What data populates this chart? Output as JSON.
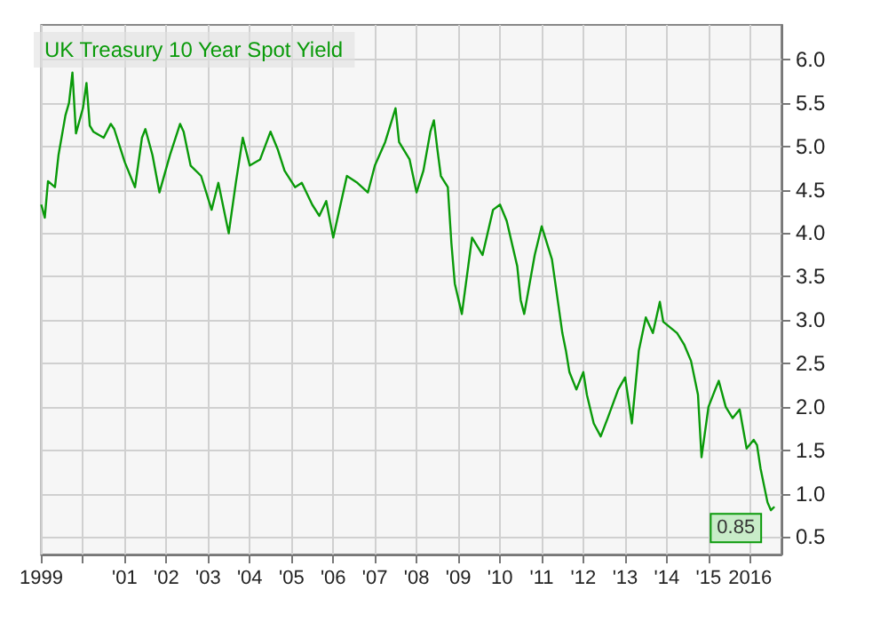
{
  "chart_data": {
    "type": "line",
    "title": "UK Treasury 10 Year Spot Yield",
    "x": [
      "1999-01",
      "1999-02",
      "1999-03",
      "1999-05",
      "1999-06",
      "1999-08",
      "1999-09",
      "1999-10",
      "1999-11",
      "2000-01",
      "2000-02",
      "2000-03",
      "2000-04",
      "2000-07",
      "2000-09",
      "2000-10",
      "2001-01",
      "2001-02",
      "2001-04",
      "2001-06",
      "2001-07",
      "2001-09",
      "2001-11",
      "2002-02",
      "2002-05",
      "2002-06",
      "2002-08",
      "2002-11",
      "2003-02",
      "2003-04",
      "2003-07",
      "2003-09",
      "2003-11",
      "2004-01",
      "2004-04",
      "2004-07",
      "2004-09",
      "2004-11",
      "2005-02",
      "2005-04",
      "2005-07",
      "2005-09",
      "2005-11",
      "2006-01",
      "2006-05",
      "2006-08",
      "2006-11",
      "2007-01",
      "2007-04",
      "2007-07",
      "2007-08",
      "2007-11",
      "2008-01",
      "2008-03",
      "2008-05",
      "2008-06",
      "2008-07",
      "2008-08",
      "2008-10",
      "2008-11",
      "2008-12",
      "2009-02",
      "2009-05",
      "2009-08",
      "2009-11",
      "2010-01",
      "2010-03",
      "2010-06",
      "2010-07",
      "2010-08",
      "2010-11",
      "2011-01",
      "2011-04",
      "2011-05",
      "2011-07",
      "2011-08",
      "2011-09",
      "2011-11",
      "2012-01",
      "2012-02",
      "2012-04",
      "2012-06",
      "2012-08",
      "2012-11",
      "2013-01",
      "2013-03",
      "2013-05",
      "2013-07",
      "2013-09",
      "2013-11",
      "2013-12",
      "2014-04",
      "2014-06",
      "2014-08",
      "2014-10",
      "2014-11",
      "2015-01",
      "2015-03",
      "2015-04",
      "2015-06",
      "2015-08",
      "2015-10",
      "2015-12",
      "2016-02",
      "2016-03",
      "2016-04",
      "2016-06",
      "2016-07",
      "2016-08"
    ],
    "series": [
      {
        "color": "#0a9a0a",
        "values": [
          4.33,
          4.18,
          4.6,
          4.53,
          4.9,
          5.36,
          5.5,
          5.85,
          5.15,
          5.44,
          5.73,
          5.24,
          5.17,
          5.1,
          5.26,
          5.2,
          4.82,
          4.72,
          4.53,
          5.1,
          5.2,
          4.9,
          4.47,
          4.9,
          5.26,
          5.17,
          4.78,
          4.66,
          4.27,
          4.58,
          4.0,
          4.58,
          5.1,
          4.78,
          4.85,
          5.17,
          4.97,
          4.72,
          4.53,
          4.58,
          4.33,
          4.2,
          4.37,
          3.95,
          4.66,
          4.58,
          4.47,
          4.78,
          5.05,
          5.44,
          5.05,
          4.85,
          4.47,
          4.72,
          5.17,
          5.3,
          4.97,
          4.66,
          4.53,
          3.89,
          3.42,
          3.07,
          3.95,
          3.75,
          4.27,
          4.33,
          4.14,
          3.62,
          3.23,
          3.07,
          3.75,
          4.08,
          3.7,
          3.42,
          2.85,
          2.65,
          2.4,
          2.2,
          2.4,
          2.14,
          1.81,
          1.66,
          1.87,
          2.2,
          2.34,
          1.81,
          2.65,
          3.03,
          2.85,
          3.21,
          2.98,
          2.85,
          2.72,
          2.53,
          2.14,
          1.42,
          2.0,
          2.2,
          2.3,
          2.0,
          1.87,
          1.97,
          1.52,
          1.62,
          1.56,
          1.29,
          0.9,
          0.81,
          0.85
        ],
        "value_labels": [
          null,
          null,
          null,
          null,
          null,
          null,
          null,
          null,
          null,
          null,
          null,
          null,
          null,
          null,
          null,
          null,
          null,
          null,
          null,
          null,
          null,
          null,
          null,
          null,
          null,
          null,
          null,
          null,
          null,
          null,
          null,
          null,
          null,
          null,
          null,
          null,
          null,
          null,
          null,
          null,
          null,
          null,
          null,
          null,
          null,
          null,
          null,
          null,
          null,
          null,
          null,
          null,
          null,
          null,
          null,
          null,
          null,
          null,
          null,
          null,
          null,
          null,
          null,
          null,
          null,
          null,
          null,
          null,
          null,
          null,
          null,
          null,
          null,
          null,
          null,
          null,
          null,
          null,
          null,
          null,
          null,
          null,
          null,
          null,
          null,
          null,
          null,
          null,
          null,
          null,
          null,
          null,
          null,
          null,
          null,
          null,
          null,
          null,
          null,
          null,
          null,
          null,
          null,
          null,
          null,
          null,
          null,
          null,
          "0.85"
        ]
      }
    ],
    "xlim": [
      "1999",
      "2016-10"
    ],
    "xticks": [
      {
        "value": "1999",
        "label": "1999"
      },
      {
        "value": "2000",
        "label": null
      },
      {
        "value": "2001",
        "label": "'01"
      },
      {
        "value": "2002",
        "label": "'02"
      },
      {
        "value": "2003",
        "label": "'03"
      },
      {
        "value": "2004",
        "label": "'04"
      },
      {
        "value": "2005",
        "label": "'05"
      },
      {
        "value": "2006",
        "label": "'06"
      },
      {
        "value": "2007",
        "label": "'07"
      },
      {
        "value": "2008",
        "label": "'08"
      },
      {
        "value": "2009",
        "label": "'09"
      },
      {
        "value": "2010",
        "label": "'10"
      },
      {
        "value": "2011",
        "label": "'11"
      },
      {
        "value": "2012",
        "label": "'12"
      },
      {
        "value": "2013",
        "label": "'13"
      },
      {
        "value": "2014",
        "label": "'14"
      },
      {
        "value": "2015",
        "label": "'15"
      },
      {
        "value": "2016",
        "label": "2016"
      }
    ],
    "ylim": [
      0.3,
      6.4
    ],
    "yticks": [
      {
        "value": 0.5,
        "label": "0.5"
      },
      {
        "value": 1,
        "label": "1.0"
      },
      {
        "value": 1.5,
        "label": "1.5"
      },
      {
        "value": 2,
        "label": "2.0"
      },
      {
        "value": 2.5,
        "label": "2.5"
      },
      {
        "value": 3,
        "label": "3.0"
      },
      {
        "value": 3.5,
        "label": "3.5"
      },
      {
        "value": 4,
        "label": "4.0"
      },
      {
        "value": 4.5,
        "label": "4.5"
      },
      {
        "value": 5,
        "label": "5.0"
      },
      {
        "value": 5.5,
        "label": "5.5"
      },
      {
        "value": 6,
        "label": "6.0"
      }
    ],
    "grid": true,
    "marker": "none",
    "line_style": "solid"
  }
}
